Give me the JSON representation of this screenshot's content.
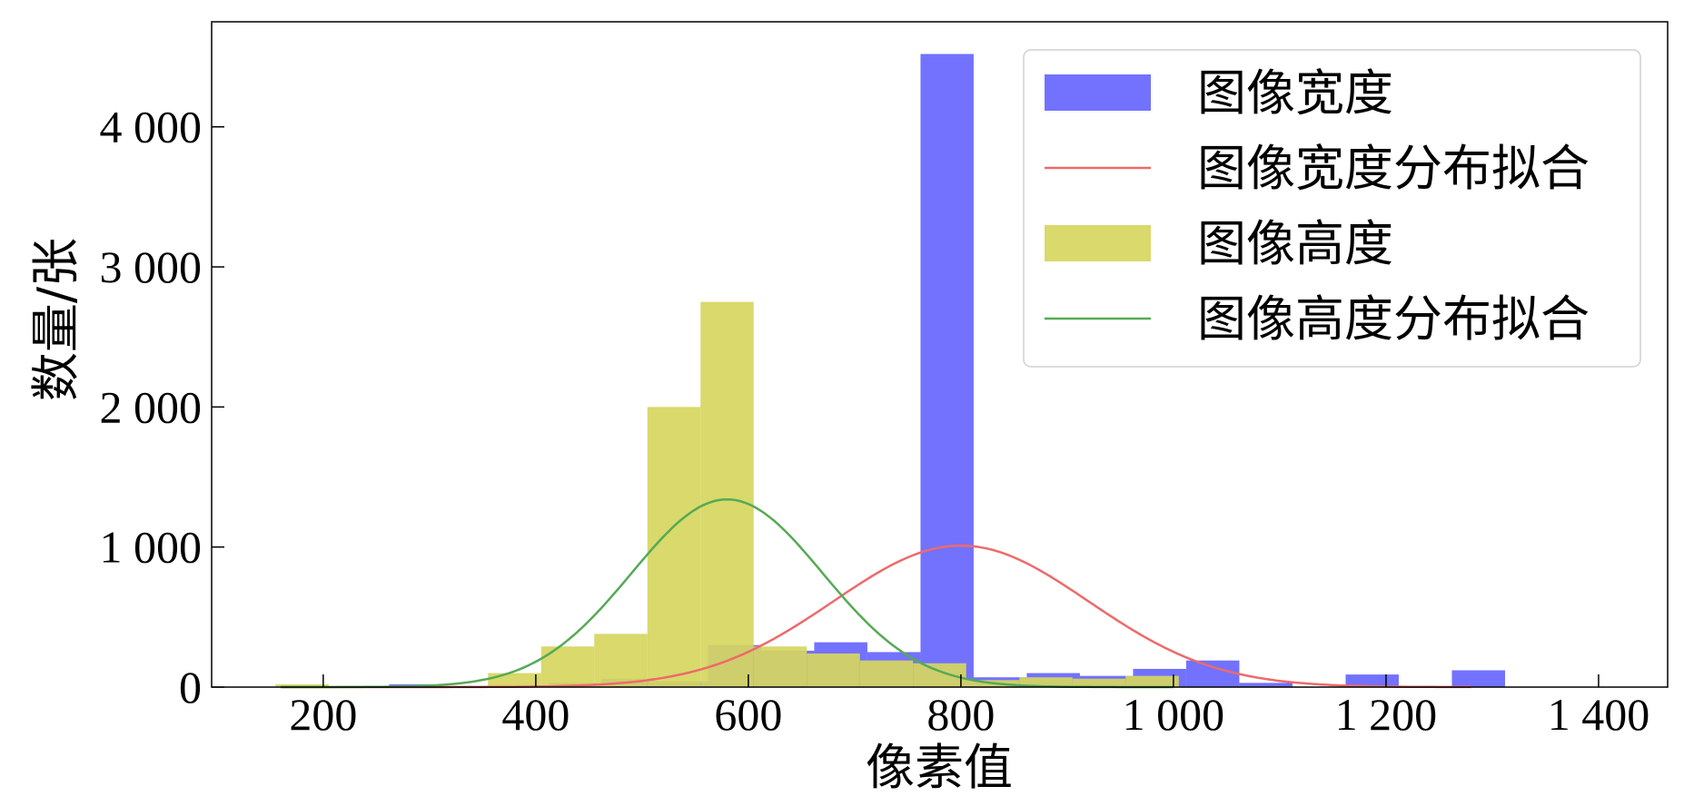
{
  "chart_data": {
    "type": "bar",
    "xlabel": "像素值",
    "ylabel": "数量/张",
    "xlim": [
      95,
      1465
    ],
    "ylim": [
      0,
      4750
    ],
    "x_ticks": [
      200,
      400,
      600,
      800,
      1000,
      1200,
      1400
    ],
    "x_tick_labels": [
      "200",
      "400",
      "600",
      "800",
      "1 000",
      "1 200",
      "1 400"
    ],
    "y_ticks": [
      0,
      1000,
      2000,
      3000,
      4000
    ],
    "y_tick_labels": [
      "0",
      "1 000",
      "2 000",
      "3 000",
      "4 000"
    ],
    "legend_position": "top-right",
    "grid": false,
    "series": [
      {
        "name": "图像宽度",
        "kind": "histogram",
        "color": "#6666ff",
        "bins": [
          {
            "x0": 262,
            "x1": 312,
            "count": 20
          },
          {
            "x0": 362,
            "x1": 412,
            "count": 8
          },
          {
            "x0": 412,
            "x1": 462,
            "count": 30
          },
          {
            "x0": 462,
            "x1": 512,
            "count": 60
          },
          {
            "x0": 512,
            "x1": 562,
            "count": 40
          },
          {
            "x0": 562,
            "x1": 612,
            "count": 300
          },
          {
            "x0": 612,
            "x1": 662,
            "count": 260
          },
          {
            "x0": 662,
            "x1": 712,
            "count": 320
          },
          {
            "x0": 712,
            "x1": 762,
            "count": 250
          },
          {
            "x0": 762,
            "x1": 812,
            "count": 4520
          },
          {
            "x0": 812,
            "x1": 862,
            "count": 70
          },
          {
            "x0": 862,
            "x1": 912,
            "count": 100
          },
          {
            "x0": 912,
            "x1": 962,
            "count": 80
          },
          {
            "x0": 962,
            "x1": 1012,
            "count": 130
          },
          {
            "x0": 1012,
            "x1": 1062,
            "count": 190
          },
          {
            "x0": 1062,
            "x1": 1112,
            "count": 30
          },
          {
            "x0": 1162,
            "x1": 1212,
            "count": 90
          },
          {
            "x0": 1262,
            "x1": 1312,
            "count": 120
          }
        ]
      },
      {
        "name": "图像宽度分布拟合",
        "kind": "gaussian",
        "color": "#ee6a6a",
        "mean": 800,
        "sd": 120,
        "peak": 1010,
        "x_range": [
          160,
          1280
        ]
      },
      {
        "name": "图像高度",
        "kind": "histogram",
        "color": "#d6d660",
        "bins": [
          {
            "x0": 155,
            "x1": 205,
            "count": 20
          },
          {
            "x0": 355,
            "x1": 405,
            "count": 100
          },
          {
            "x0": 405,
            "x1": 455,
            "count": 290
          },
          {
            "x0": 455,
            "x1": 505,
            "count": 380
          },
          {
            "x0": 505,
            "x1": 555,
            "count": 2000
          },
          {
            "x0": 555,
            "x1": 605,
            "count": 2750
          },
          {
            "x0": 605,
            "x1": 655,
            "count": 290
          },
          {
            "x0": 655,
            "x1": 705,
            "count": 240
          },
          {
            "x0": 705,
            "x1": 755,
            "count": 190
          },
          {
            "x0": 755,
            "x1": 805,
            "count": 170
          },
          {
            "x0": 805,
            "x1": 855,
            "count": 50
          },
          {
            "x0": 855,
            "x1": 905,
            "count": 70
          },
          {
            "x0": 905,
            "x1": 955,
            "count": 60
          },
          {
            "x0": 955,
            "x1": 1005,
            "count": 80
          }
        ]
      },
      {
        "name": "图像高度分布拟合",
        "kind": "gaussian",
        "color": "#55aa55",
        "mean": 580,
        "sd": 90,
        "peak": 1340,
        "x_range": [
          160,
          1000
        ]
      }
    ]
  }
}
